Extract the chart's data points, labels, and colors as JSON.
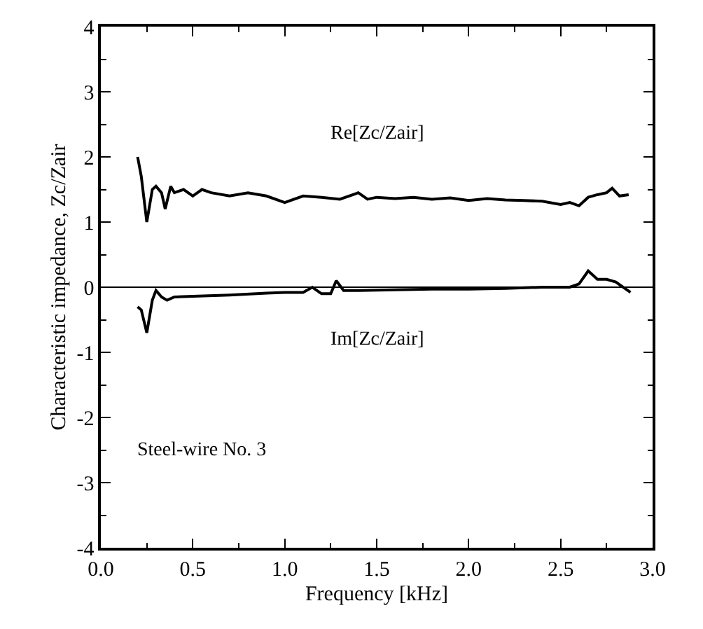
{
  "chart_data": {
    "type": "line",
    "xlabel": "Frequency [kHz]",
    "ylabel": "Characteristic impedance, Zc/Zair",
    "xlim": [
      0.0,
      3.0
    ],
    "xticks": [
      {
        "value": 0,
        "label": "0.0"
      },
      0.5,
      {
        "value": 1,
        "label": "1.0"
      },
      1.5,
      {
        "value": 2,
        "label": "2.0"
      },
      2.5,
      {
        "value": 3,
        "label": "3.0"
      }
    ],
    "ylim": [
      -4,
      4
    ],
    "yticks": [
      -4,
      -3,
      -2,
      -1,
      0,
      1,
      2,
      3,
      4
    ],
    "marker": "none",
    "line_style": "solid",
    "series": [
      {
        "name": "Re[Zc/Zair]",
        "color": "#000000",
        "x": [
          0.2,
          0.22,
          0.25,
          0.28,
          0.3,
          0.33,
          0.35,
          0.38,
          0.4,
          0.45,
          0.5,
          0.55,
          0.6,
          0.7,
          0.8,
          0.9,
          1.0,
          1.1,
          1.2,
          1.3,
          1.4,
          1.45,
          1.5,
          1.6,
          1.7,
          1.8,
          1.9,
          2.0,
          2.1,
          2.2,
          2.3,
          2.4,
          2.5,
          2.55,
          2.6,
          2.65,
          2.7,
          2.75,
          2.78,
          2.82,
          2.87
        ],
        "values": [
          2.0,
          1.7,
          1.0,
          1.5,
          1.55,
          1.45,
          1.2,
          1.55,
          1.45,
          1.5,
          1.4,
          1.5,
          1.45,
          1.4,
          1.45,
          1.4,
          1.3,
          1.4,
          1.38,
          1.35,
          1.45,
          1.35,
          1.38,
          1.36,
          1.38,
          1.35,
          1.37,
          1.33,
          1.36,
          1.34,
          1.33,
          1.32,
          1.27,
          1.3,
          1.25,
          1.38,
          1.42,
          1.45,
          1.52,
          1.4,
          1.42
        ]
      },
      {
        "name": "Im[Zc/Zair]",
        "color": "#000000",
        "x": [
          0.2,
          0.22,
          0.25,
          0.28,
          0.3,
          0.33,
          0.36,
          0.4,
          0.5,
          0.7,
          0.9,
          1.0,
          1.1,
          1.15,
          1.2,
          1.25,
          1.28,
          1.32,
          1.4,
          1.6,
          1.8,
          2.0,
          2.2,
          2.4,
          2.55,
          2.6,
          2.65,
          2.7,
          2.75,
          2.8,
          2.85,
          2.88
        ],
        "values": [
          -0.3,
          -0.35,
          -0.7,
          -0.2,
          -0.05,
          -0.15,
          -0.2,
          -0.15,
          -0.14,
          -0.12,
          -0.09,
          -0.08,
          -0.08,
          0.0,
          -0.1,
          -0.1,
          0.1,
          -0.05,
          -0.05,
          -0.04,
          -0.03,
          -0.03,
          -0.02,
          0.0,
          0.0,
          0.05,
          0.25,
          0.12,
          0.12,
          0.08,
          -0.02,
          -0.08
        ]
      }
    ],
    "ref_lines": [
      {
        "axis": "y",
        "value": 0,
        "color": "#000000"
      }
    ],
    "annotations": [
      "Steel-wire No. 3"
    ]
  }
}
